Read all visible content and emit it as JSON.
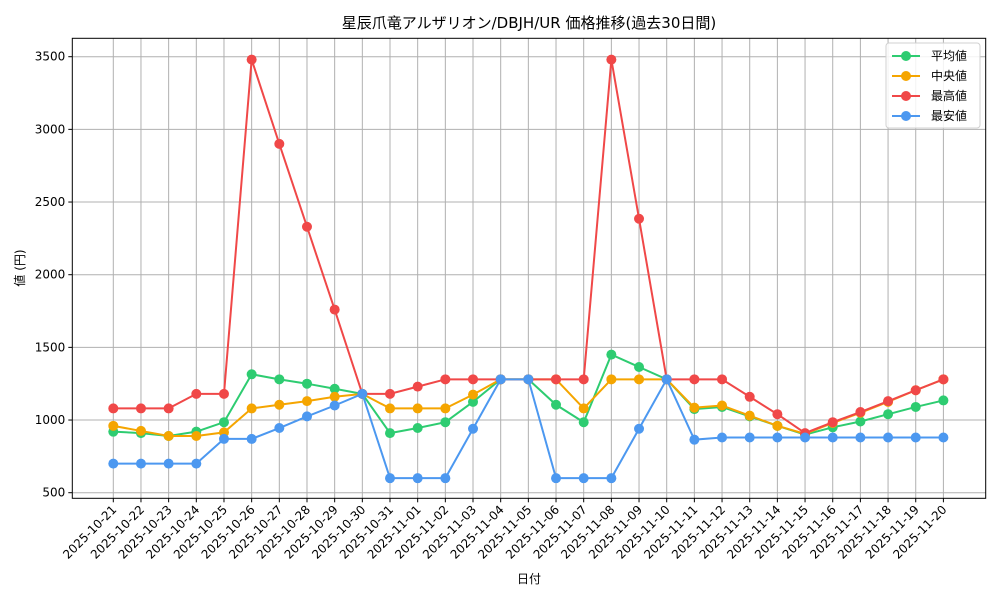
{
  "chart_data": {
    "type": "line",
    "title": "星辰爪竜アルザリオン/DBJH/UR 価格推移(過去30日間)",
    "xlabel": "日付",
    "ylabel": "値 (円)",
    "ylim": [
      461,
      3627
    ],
    "yticks": [
      500,
      1000,
      1500,
      2000,
      2500,
      3000,
      3500
    ],
    "grid": true,
    "legend_position": "upper right",
    "x": [
      "2025-10-21",
      "2025-10-22",
      "2025-10-23",
      "2025-10-24",
      "2025-10-25",
      "2025-10-26",
      "2025-10-27",
      "2025-10-28",
      "2025-10-29",
      "2025-10-30",
      "2025-10-31",
      "2025-11-01",
      "2025-11-02",
      "2025-11-03",
      "2025-11-04",
      "2025-11-05",
      "2025-11-06",
      "2025-11-07",
      "2025-11-08",
      "2025-11-09",
      "2025-11-10",
      "2025-11-11",
      "2025-11-12",
      "2025-11-13",
      "2025-11-14",
      "2025-11-15",
      "2025-11-16",
      "2025-11-17",
      "2025-11-18",
      "2025-11-19",
      "2025-11-20"
    ],
    "series": [
      {
        "name": "平均値",
        "color": "#2ecc71",
        "values": [
          920,
          910,
          890,
          920,
          985,
          1315,
          1280,
          1250,
          1215,
          1180,
          910,
          945,
          985,
          1125,
          1280,
          1280,
          1105,
          985,
          1450,
          1365,
          1280,
          1075,
          1090,
          1025,
          960,
          900,
          950,
          990,
          1040,
          1090,
          1135
        ]
      },
      {
        "name": "中央値",
        "color": "#f5a500",
        "values": [
          960,
          925,
          890,
          890,
          915,
          1080,
          1105,
          1130,
          1160,
          1180,
          1080,
          1080,
          1080,
          1175,
          1280,
          1280,
          1280,
          1080,
          1280,
          1280,
          1280,
          1085,
          1100,
          1030,
          960,
          905,
          980,
          1050,
          1125,
          1205,
          1280
        ]
      },
      {
        "name": "最高値",
        "color": "#f04848",
        "values": [
          1080,
          1080,
          1080,
          1180,
          1180,
          3480,
          2900,
          2330,
          1760,
          1180,
          1180,
          1230,
          1280,
          1280,
          1280,
          1280,
          1280,
          1280,
          3480,
          2385,
          1280,
          1280,
          1280,
          1160,
          1040,
          910,
          985,
          1055,
          1130,
          1205,
          1280
        ]
      },
      {
        "name": "最安値",
        "color": "#4c98f0",
        "values": [
          700,
          700,
          700,
          700,
          870,
          870,
          945,
          1025,
          1100,
          1180,
          600,
          600,
          600,
          940,
          1280,
          1280,
          600,
          600,
          600,
          940,
          1280,
          865,
          880,
          880,
          880,
          880,
          880,
          880,
          880,
          880,
          880
        ]
      }
    ]
  }
}
